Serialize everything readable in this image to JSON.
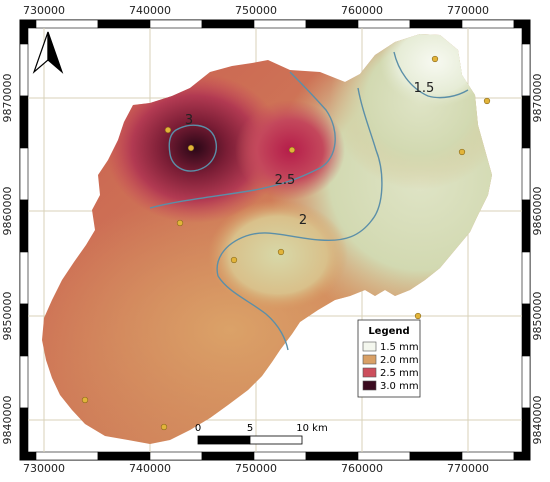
{
  "axes": {
    "x_ticks": [
      "730000",
      "740000",
      "750000",
      "760000",
      "770000"
    ],
    "y_ticks": [
      "9870000",
      "9860000",
      "9850000",
      "9840000"
    ]
  },
  "contours": [
    {
      "label": "3",
      "value": 3.0
    },
    {
      "label": "2.5",
      "value": 2.5
    },
    {
      "label": "2",
      "value": 2.0
    },
    {
      "label": "1.5",
      "value": 1.5
    }
  ],
  "legend": {
    "title": "Legend",
    "items": [
      {
        "label": "1.5 mm",
        "color": "#f4f7ee"
      },
      {
        "label": "2.0 mm",
        "color": "#d9a066"
      },
      {
        "label": "2.5 mm",
        "color": "#cc4e5c"
      },
      {
        "label": "3.0 mm",
        "color": "#3a0b1f"
      }
    ]
  },
  "scale_bar": {
    "labels": [
      "0",
      "5",
      "10 km"
    ]
  },
  "colors": {
    "contour": "#5b8fa8",
    "station": "#e2b43a",
    "grid": "#d8d2b8",
    "frame": "#000000"
  },
  "icons": {
    "north_arrow": "north-arrow-icon"
  }
}
